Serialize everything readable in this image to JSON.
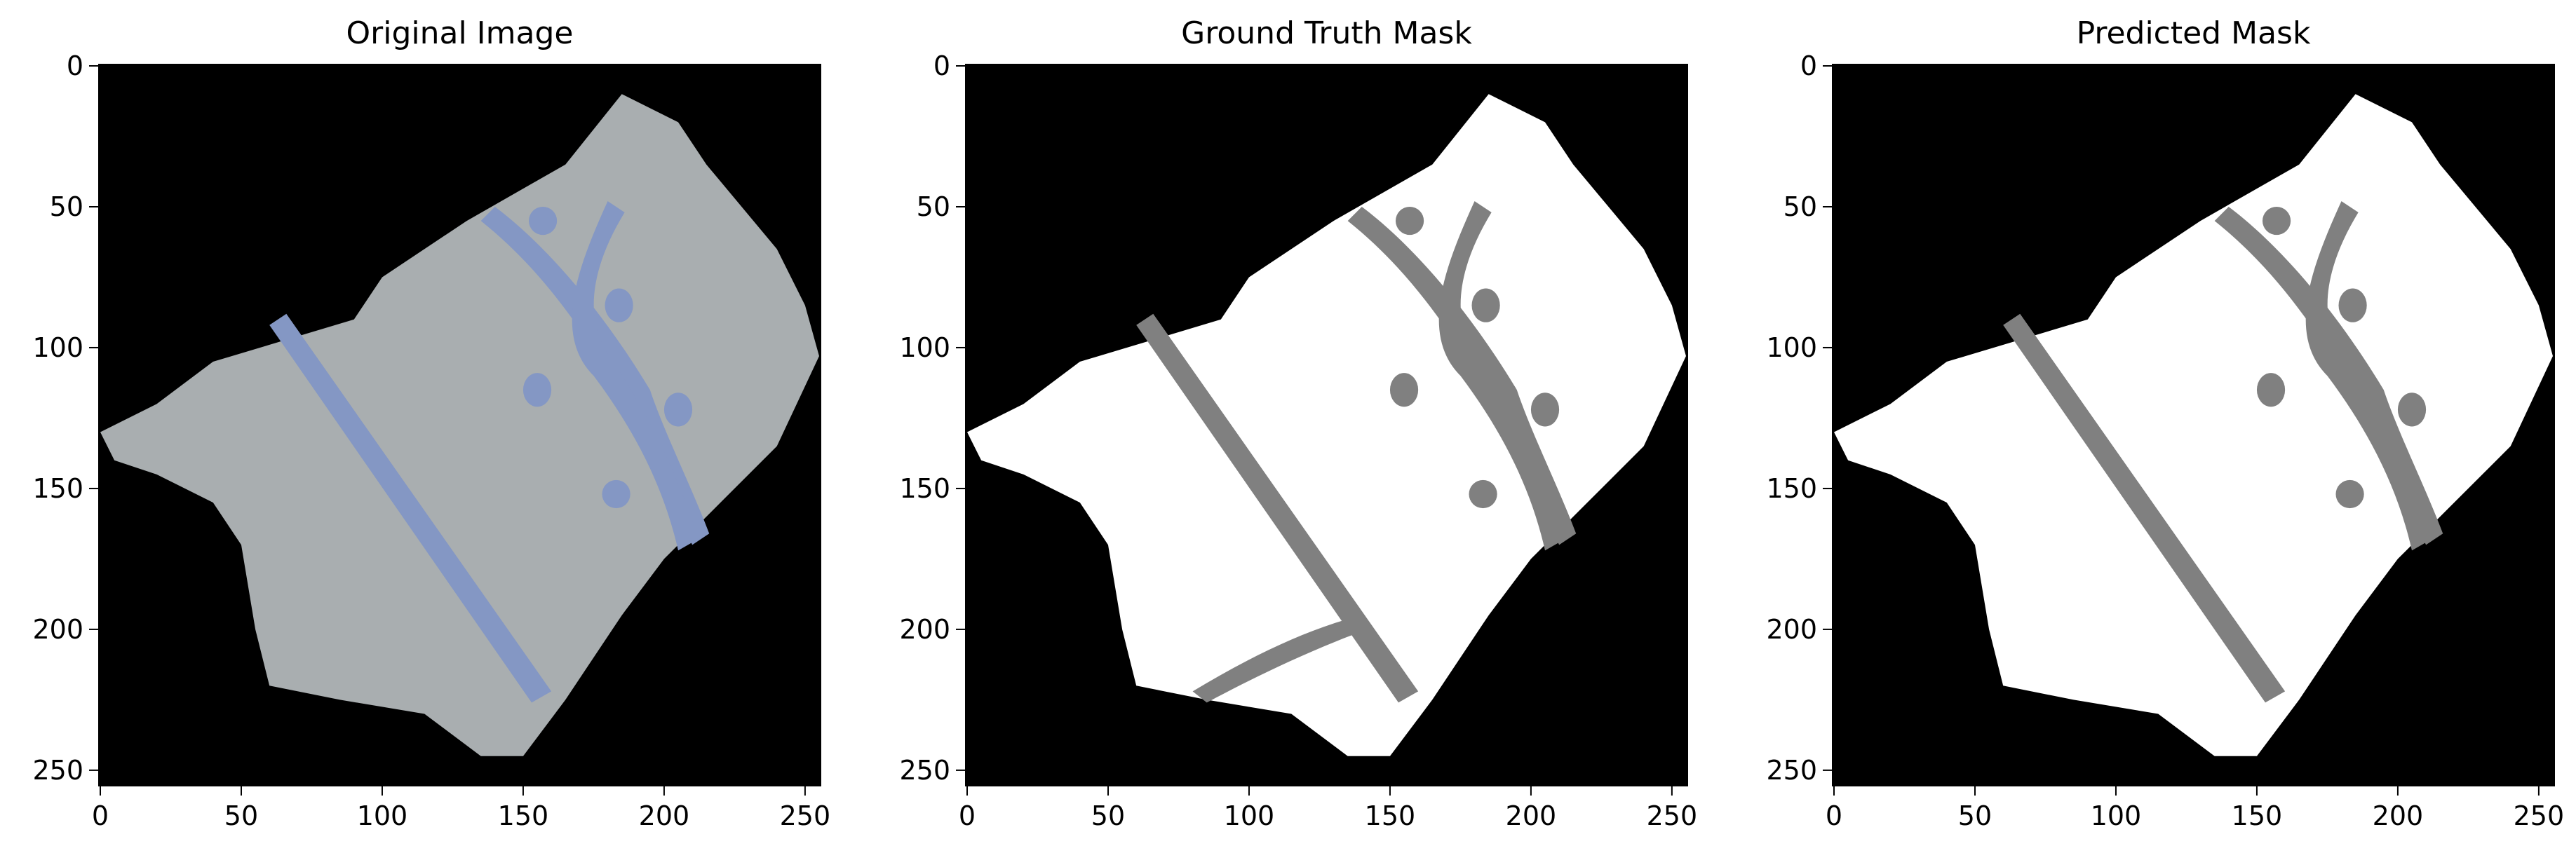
{
  "chart_data": [
    {
      "type": "image",
      "title": "Original Image",
      "xlim": [
        -0.5,
        255.5
      ],
      "ylim": [
        255.5,
        -0.5
      ],
      "xticks": [
        0,
        50,
        100,
        150,
        200,
        250
      ],
      "yticks": [
        0,
        50,
        100,
        150,
        200,
        250
      ]
    },
    {
      "type": "image",
      "title": "Ground Truth Mask",
      "xlim": [
        -0.5,
        255.5
      ],
      "ylim": [
        255.5,
        -0.5
      ],
      "xticks": [
        0,
        50,
        100,
        150,
        200,
        250
      ],
      "yticks": [
        0,
        50,
        100,
        150,
        200,
        250
      ]
    },
    {
      "type": "image",
      "title": "Predicted Mask",
      "xlim": [
        -0.5,
        255.5
      ],
      "ylim": [
        255.5,
        -0.5
      ],
      "xticks": [
        0,
        50,
        100,
        150,
        200,
        250
      ],
      "yticks": [
        0,
        50,
        100,
        150,
        200,
        250
      ]
    }
  ]
}
